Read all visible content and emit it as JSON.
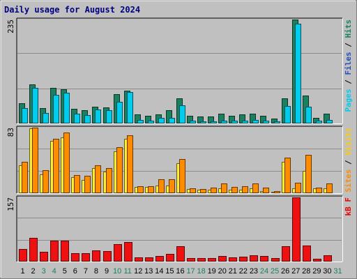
{
  "chart_data": {
    "title": "Daily usage for August 2024",
    "type": "bar",
    "categories": [
      "1",
      "2",
      "3",
      "4",
      "5",
      "6",
      "7",
      "8",
      "9",
      "10",
      "11",
      "12",
      "13",
      "14",
      "15",
      "16",
      "17",
      "18",
      "19",
      "20",
      "21",
      "22",
      "23",
      "24",
      "25",
      "26",
      "27",
      "28",
      "29",
      "30",
      "31"
    ],
    "weekend_categories": [
      "3",
      "4",
      "10",
      "11",
      "17",
      "18",
      "24",
      "25",
      "31"
    ],
    "panels": [
      {
        "max_label": "235",
        "ylim": [
          0,
          235
        ],
        "grid": true,
        "legend": [
          {
            "text": "Pages",
            "color": "#00ccee"
          },
          {
            "text": " / ",
            "color": "#000000"
          },
          {
            "text": "Files",
            "color": "#2050c0"
          },
          {
            "text": " / ",
            "color": "#000000"
          },
          {
            "text": "Hits",
            "color": "#1a8060"
          }
        ],
        "series": [
          {
            "name": "Hits",
            "color": "#1a8060",
            "values": [
              45,
              88,
              35,
              80,
              78,
              33,
              30,
              38,
              37,
              67,
              74,
              20,
              17,
              20,
              30,
              56,
              17,
              15,
              15,
              22,
              17,
              20,
              22,
              17,
              11,
              57,
              235,
              63,
              12,
              22,
              0
            ]
          },
          {
            "name": "Files",
            "color": "#00ccee",
            "values": [
              34,
              80,
              23,
              64,
              70,
              22,
              19,
              32,
              30,
              49,
              71,
              8,
              7,
              12,
              12,
              41,
              6,
              5,
              5,
              6,
              6,
              7,
              8,
              6,
              5,
              40,
              225,
              38,
              7,
              8,
              0
            ]
          }
        ]
      },
      {
        "max_label": "83",
        "ylim": [
          0,
          83
        ],
        "grid": true,
        "legend": [
          {
            "text": "Sites",
            "color": "#ff8c00"
          },
          {
            "text": " / ",
            "color": "#000000"
          },
          {
            "text": "Visits",
            "color": "#ffcc00"
          }
        ],
        "series": [
          {
            "name": "Visits",
            "color": "#ffee33",
            "values": [
              35,
              82,
              24,
              66,
              71,
              20,
              17,
              32,
              27,
              53,
              69,
              8,
              8,
              10,
              10,
              38,
              5,
              4,
              4,
              6,
              4,
              4,
              6,
              3,
              2,
              40,
              6,
              28,
              6,
              6,
              0
            ]
          },
          {
            "name": "Sites",
            "color": "#ff8c00",
            "values": [
              40,
              83,
              29,
              69,
              77,
              23,
              22,
              35,
              32,
              58,
              73,
              9,
              9,
              18,
              18,
              43,
              6,
              5,
              7,
              12,
              8,
              9,
              12,
              7,
              3,
              45,
              13,
              49,
              7,
              12,
              0
            ]
          }
        ]
      },
      {
        "max_label": "157",
        "ylim": [
          0,
          157
        ],
        "grid": true,
        "legend": [
          {
            "text": "kB F",
            "color": "#ee0000"
          }
        ],
        "series": [
          {
            "name": "kB F",
            "color": "#ee1111",
            "values": [
              30,
              58,
              24,
              51,
              51,
              21,
              21,
              28,
              26,
              42,
              48,
              11,
              11,
              14,
              19,
              37,
              9,
              9,
              9,
              14,
              11,
              12,
              15,
              13,
              9,
              37,
              157,
              40,
              7,
              15,
              0
            ]
          }
        ]
      }
    ]
  }
}
